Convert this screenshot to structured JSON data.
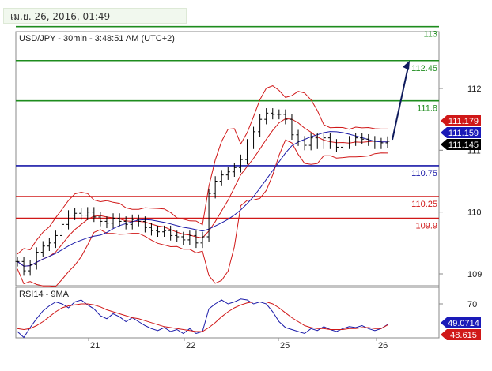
{
  "header": {
    "date": "เม.ย. 26, 2016, 01:49"
  },
  "chart_data": [
    {
      "type": "line",
      "title": "USD/JPY - 30min - 3:48:51 AM (UTC+2)",
      "ylim": [
        108.7,
        113.5
      ],
      "y_ticks": [
        109,
        110,
        111,
        112
      ],
      "x_ticks": [
        "21",
        "22",
        "25",
        "26"
      ],
      "grid": false,
      "price_series": {
        "name": "USD/JPY",
        "color": "#000000",
        "closes": [
          109.2,
          109.05,
          109.15,
          109.35,
          109.45,
          109.5,
          109.62,
          109.8,
          109.95,
          109.98,
          109.95,
          110.0,
          109.92,
          109.85,
          109.82,
          109.9,
          109.85,
          109.8,
          109.88,
          109.85,
          109.75,
          109.7,
          109.68,
          109.7,
          109.62,
          109.6,
          109.55,
          109.62,
          109.5,
          109.6,
          110.3,
          110.5,
          110.6,
          110.65,
          110.72,
          110.85,
          111.1,
          111.3,
          111.5,
          111.6,
          111.58,
          111.58,
          111.5,
          111.25,
          111.15,
          111.08,
          111.2,
          111.1,
          111.2,
          111.1,
          111.05,
          111.1,
          111.15,
          111.2,
          111.18,
          111.15,
          111.1,
          111.12,
          111.145
        ]
      },
      "horizontal_levels": [
        {
          "label": "113",
          "value": 113.0,
          "color": "#1e8c1e"
        },
        {
          "label": "112.45",
          "value": 112.45,
          "color": "#1e8c1e"
        },
        {
          "label": "111.8",
          "value": 111.8,
          "color": "#1e8c1e"
        },
        {
          "label": "110.75",
          "value": 110.75,
          "color": "#1a1aa8"
        },
        {
          "label": "110.25",
          "value": 110.25,
          "color": "#d01818"
        },
        {
          "label": "109.9",
          "value": 109.9,
          "color": "#d01818"
        }
      ],
      "price_tags": [
        {
          "label": "111.179",
          "value": 111.179,
          "color": "#d01818"
        },
        {
          "label": "111.159",
          "value": 111.159,
          "color": "#1a1ab8"
        },
        {
          "label": "111.145",
          "value": 111.145,
          "color": "#000000"
        }
      ],
      "forecast_arrow": {
        "from": 111.145,
        "to": 112.45,
        "color": "#0e1a5c"
      },
      "bollinger_color": "#d01818",
      "ma_color": "#1a1aa8"
    },
    {
      "type": "line",
      "title": "RSI14 - 9MA",
      "y_ticks": [
        70
      ],
      "ylim": [
        30,
        80
      ],
      "series": [
        {
          "name": "RSI14",
          "color": "#1a1aa8",
          "values": [
            42,
            36,
            46,
            55,
            63,
            68,
            72,
            70,
            66,
            72,
            74,
            69,
            65,
            58,
            55,
            60,
            57,
            52,
            56,
            52,
            48,
            45,
            43,
            46,
            42,
            44,
            40,
            45,
            40,
            42,
            65,
            70,
            74,
            70,
            72,
            75,
            74,
            70,
            72,
            70,
            62,
            52,
            46,
            44,
            42,
            40,
            45,
            43,
            47,
            44,
            42,
            45,
            47,
            46,
            48,
            45,
            43,
            45,
            49.0714
          ]
        },
        {
          "name": "9MA",
          "color": "#d01818",
          "values": [
            45,
            44,
            45,
            48,
            52,
            57,
            62,
            66,
            68,
            69,
            70,
            70,
            69,
            67,
            64,
            62,
            60,
            58,
            56,
            55,
            53,
            51,
            49,
            47,
            46,
            45,
            44,
            43,
            42,
            42,
            46,
            51,
            57,
            62,
            66,
            69,
            71,
            72,
            72,
            72,
            70,
            66,
            61,
            56,
            52,
            48,
            46,
            45,
            45,
            44,
            44,
            44,
            45,
            45,
            46,
            46,
            45,
            45,
            48.615
          ]
        }
      ],
      "value_tags": [
        {
          "label": "49.0714",
          "value": 49.0714,
          "color": "#1a1ab8"
        },
        {
          "label": "48.615",
          "value": 48.615,
          "color": "#d01818"
        }
      ]
    }
  ]
}
